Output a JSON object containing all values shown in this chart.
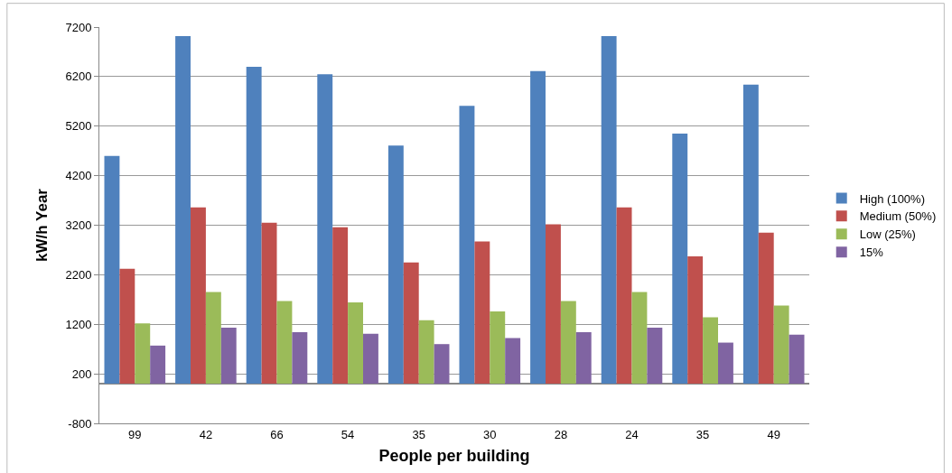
{
  "chart_data": {
    "type": "bar",
    "xlabel": "People per building",
    "ylabel": "kW/h Year",
    "categories": [
      "99",
      "42",
      "66",
      "54",
      "35",
      "30",
      "28",
      "24",
      "35",
      "49"
    ],
    "series": [
      {
        "name": "High (100%)",
        "color": "#4f81bd",
        "values": [
          4600,
          7020,
          6400,
          6250,
          4810,
          5610,
          6310,
          7020,
          5050,
          6040
        ]
      },
      {
        "name": "Medium (50%)",
        "color": "#c0504d",
        "values": [
          2320,
          3560,
          3250,
          3160,
          2450,
          2870,
          3220,
          3560,
          2570,
          3050
        ]
      },
      {
        "name": "Low (25%)",
        "color": "#9bbb59",
        "values": [
          1220,
          1850,
          1670,
          1640,
          1280,
          1460,
          1670,
          1850,
          1340,
          1580
        ]
      },
      {
        "name": "15%",
        "color": "#8064a2",
        "values": [
          770,
          1130,
          1040,
          1010,
          800,
          920,
          1040,
          1130,
          830,
          990
        ]
      }
    ],
    "ylim": [
      -800,
      7200
    ],
    "yticks": [
      -800,
      200,
      1200,
      2200,
      3200,
      4200,
      5200,
      6200,
      7200
    ],
    "grid": "y",
    "legend": "right"
  }
}
